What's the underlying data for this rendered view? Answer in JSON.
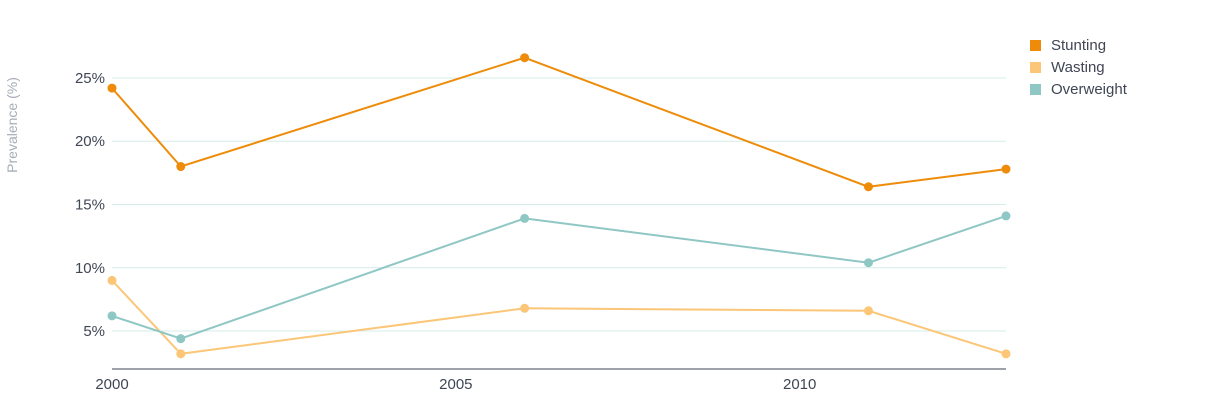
{
  "chart_data": {
    "type": "line",
    "title": "",
    "xlabel": "",
    "ylabel": "Prevalence (%)",
    "x": [
      2000,
      2001,
      2006,
      2011,
      2013
    ],
    "x_ticks": [
      2000,
      2005,
      2010
    ],
    "x_tick_labels": [
      "2000",
      "2005",
      "2010"
    ],
    "xlim": [
      2000,
      2013
    ],
    "y_ticks": [
      5,
      10,
      15,
      20,
      25
    ],
    "y_tick_labels": [
      "5%",
      "10%",
      "15%",
      "20%",
      "25%"
    ],
    "ylim": [
      2,
      28
    ],
    "grid": "horizontal",
    "legend_position": "top-right",
    "series": [
      {
        "name": "Stunting",
        "color": "#ee8c0a",
        "values": [
          24.2,
          18.0,
          26.6,
          16.4,
          17.8
        ]
      },
      {
        "name": "Wasting",
        "color": "#fbc677",
        "values": [
          9.0,
          3.2,
          6.8,
          6.6,
          3.2
        ]
      },
      {
        "name": "Overweight",
        "color": "#8fc7c4",
        "values": [
          6.2,
          4.4,
          13.9,
          10.4,
          14.1
        ]
      }
    ]
  }
}
